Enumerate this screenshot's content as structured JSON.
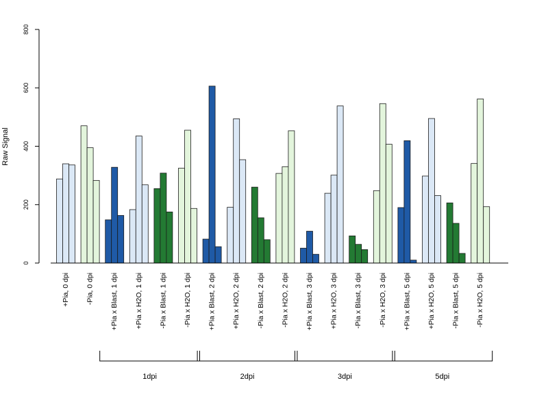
{
  "chart_data": {
    "type": "bar",
    "title": "",
    "xlabel": "",
    "ylabel": "Raw Signal",
    "ylim": [
      0,
      800
    ],
    "yticks": [
      "0",
      "200",
      "400",
      "600",
      "800"
    ],
    "grid": false,
    "legend": "none",
    "colors": {
      "pia_plus_blast": "#1f5aa6",
      "pia_plus_h2o": "#dbe8f6",
      "pia_minus_blast": "#237a33",
      "pia_minus_h2o": "#e3f5dc"
    },
    "categories": [
      "+Pia, 0 dpi",
      "-Pia, 0 dpi",
      "+Pia x Blast, 1 dpi",
      "+Pia x H2O, 1 dpi",
      "-Pia x Blast, 1 dpi",
      "-Pia x H2O, 1 dpi",
      "+Pia x Blast, 2 dpi",
      "+Pia x H2O, 2 dpi",
      "-Pia x Blast, 2 dpi",
      "-Pia x H2O, 2 dpi",
      "+Pia x Blast, 3 dpi",
      "+Pia x H2O, 3 dpi",
      "-Pia x Blast, 3 dpi",
      "-Pia x H2O, 3 dpi",
      "+Pia x Blast, 5 dpi",
      "+Pia x H2O, 5 dpi",
      "-Pia x Blast, 5 dpi",
      "-Pia x H2O, 5 dpi"
    ],
    "group_colors": [
      "pia_plus_h2o",
      "pia_minus_h2o",
      "pia_plus_blast",
      "pia_plus_h2o",
      "pia_minus_blast",
      "pia_minus_h2o",
      "pia_plus_blast",
      "pia_plus_h2o",
      "pia_minus_blast",
      "pia_minus_h2o",
      "pia_plus_blast",
      "pia_plus_h2o",
      "pia_minus_blast",
      "pia_minus_h2o",
      "pia_plus_blast",
      "pia_plus_h2o",
      "pia_minus_blast",
      "pia_minus_h2o"
    ],
    "values": [
      [
        288,
        340,
        336
      ],
      [
        470,
        395,
        283
      ],
      [
        148,
        328,
        163
      ],
      [
        183,
        435,
        268
      ],
      [
        255,
        308,
        175
      ],
      [
        325,
        455,
        187
      ],
      [
        82,
        606,
        56
      ],
      [
        191,
        494,
        354
      ],
      [
        260,
        155,
        80
      ],
      [
        307,
        330,
        453
      ],
      [
        51,
        109,
        30
      ],
      [
        239,
        301,
        538
      ],
      [
        93,
        64,
        46
      ],
      [
        248,
        546,
        407
      ],
      [
        190,
        419,
        10
      ],
      [
        298,
        495,
        231
      ],
      [
        206,
        136,
        33
      ],
      [
        341,
        562,
        193
      ]
    ],
    "timepoint_groups": [
      {
        "label": "1dpi",
        "first": 2,
        "last": 5
      },
      {
        "label": "2dpi",
        "first": 6,
        "last": 9
      },
      {
        "label": "3dpi",
        "first": 10,
        "last": 13
      },
      {
        "label": "5dpi",
        "first": 14,
        "last": 17
      }
    ]
  }
}
